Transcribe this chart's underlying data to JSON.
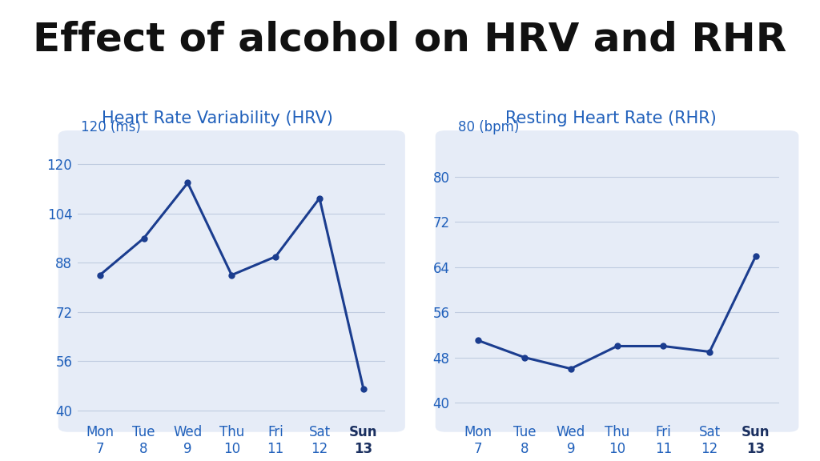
{
  "title": "Effect of alcohol on HRV and RHR",
  "title_fontsize": 36,
  "title_color": "#111111",
  "title_fontweight": "bold",
  "hrv_subtitle": "Heart Rate Variability (HRV)",
  "rhr_subtitle": "Resting Heart Rate (RHR)",
  "subtitle_fontsize": 15,
  "subtitle_color": "#2060bb",
  "days": [
    "Mon\n7",
    "Tue\n8",
    "Wed\n9",
    "Thu\n10",
    "Fri\n11",
    "Sat\n12",
    "Sun\n13"
  ],
  "hrv_values": [
    84,
    96,
    114,
    84,
    90,
    109,
    47
  ],
  "hrv_yticks": [
    40,
    56,
    72,
    88,
    104,
    120
  ],
  "hrv_ylim": [
    37,
    127
  ],
  "hrv_ylabel": "120 (ms)",
  "rhr_values": [
    51,
    48,
    46,
    50,
    50,
    49,
    66
  ],
  "rhr_yticks": [
    40,
    48,
    56,
    64,
    72,
    80
  ],
  "rhr_ylim": [
    37,
    86
  ],
  "rhr_ylabel": "80 (bpm)",
  "line_color": "#1b3d8f",
  "line_width": 2.2,
  "marker_size": 6,
  "marker_color": "#1b3d8f",
  "panel_bg": "#e6ecf7",
  "fig_bg": "#ffffff",
  "tick_color": "#2060bb",
  "tick_fontsize": 12,
  "grid_color": "#c0cce0",
  "grid_alpha": 1.0,
  "grid_linewidth": 0.8,
  "sun_color": "#1b3060",
  "sun_fontweight": "bold"
}
